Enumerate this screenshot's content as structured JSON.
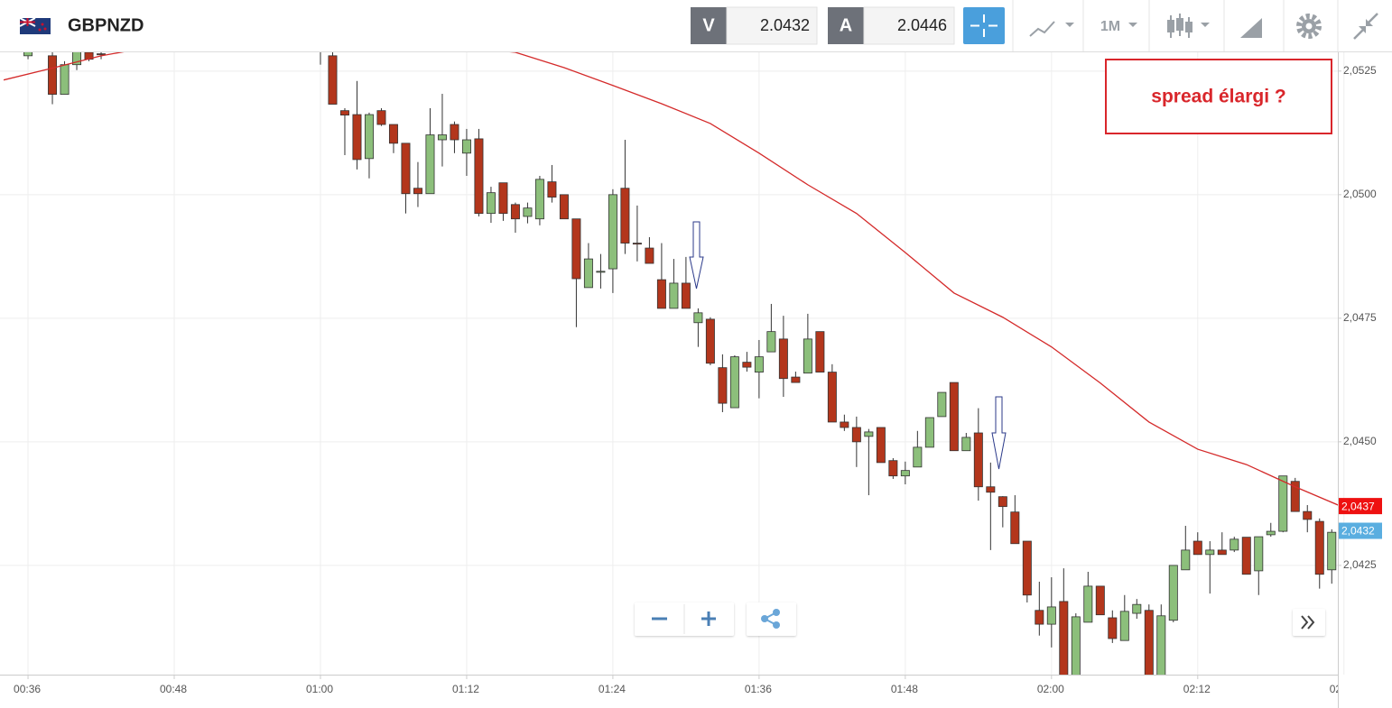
{
  "header": {
    "symbol": "GBPNZD",
    "bid_label": "V",
    "bid": 2.0432,
    "ask_label": "A",
    "ask": 2.0446,
    "timeframe": "1M"
  },
  "chart_data": {
    "type": "candlestick",
    "annotation": "spread élargi ?",
    "up_color": "#8cbf7b",
    "down_color": "#b3361c",
    "wick_color": "#333333",
    "grid": true,
    "xlim": [
      33.7,
      143.5
    ],
    "ylim": [
      2.04029,
      2.05288
    ],
    "xticks": [
      {
        "value": 36,
        "label": "00:36"
      },
      {
        "value": 48,
        "label": "00:48"
      },
      {
        "value": 60,
        "label": "01:00"
      },
      {
        "value": 72,
        "label": "01:12"
      },
      {
        "value": 84,
        "label": "01:24"
      },
      {
        "value": 96,
        "label": "01:36"
      },
      {
        "value": 108,
        "label": "01:48"
      },
      {
        "value": 120,
        "label": "02:00"
      },
      {
        "value": 132,
        "label": "02:12"
      },
      {
        "value": 144,
        "label": "02"
      }
    ],
    "yticks": [
      {
        "value": 2.0425,
        "label": "2,0425"
      },
      {
        "value": 2.045,
        "label": "2,0450"
      },
      {
        "value": 2.0475,
        "label": "2,0475"
      },
      {
        "value": 2.05,
        "label": "2,0500"
      },
      {
        "value": 2.0525,
        "label": "2,0525"
      }
    ],
    "x": [
      36,
      38,
      39,
      40,
      41,
      42,
      60,
      61,
      62,
      63,
      64,
      65,
      66,
      67,
      68,
      69,
      70,
      71,
      72,
      73,
      74,
      75,
      76,
      77,
      78,
      79,
      80,
      81,
      82,
      83,
      84,
      85,
      86,
      87,
      88,
      89,
      90,
      91,
      92,
      93,
      94,
      95,
      96,
      97,
      98,
      99,
      100,
      101,
      102,
      103,
      104,
      105,
      106,
      107,
      108,
      109,
      110,
      111,
      112,
      113,
      114,
      115,
      116,
      117,
      118,
      119,
      120,
      121,
      122,
      123,
      124,
      125,
      126,
      127,
      128,
      129,
      130,
      131,
      132,
      133,
      134,
      135,
      136,
      137,
      138,
      139,
      140,
      141,
      142,
      143
    ],
    "open": [
      2.05281,
      2.05281,
      2.05203,
      2.05263,
      2.05288,
      2.05285,
      2.05303,
      2.05281,
      2.0517,
      2.05162,
      2.05073,
      2.0517,
      2.05142,
      2.05104,
      2.05013,
      2.05002,
      2.05111,
      2.05142,
      2.05084,
      2.05113,
      2.04962,
      2.05024,
      2.0498,
      2.04956,
      2.04951,
      2.05026,
      2.05,
      2.04951,
      2.04812,
      2.04843,
      2.0485,
      2.05013,
      2.04902,
      2.04892,
      2.04828,
      2.0477,
      2.04821,
      2.04741,
      2.04748,
      2.0465,
      2.04569,
      2.04661,
      2.04641,
      2.04682,
      2.04708,
      2.04631,
      2.04639,
      2.04723,
      2.04641,
      2.0454,
      2.04529,
      2.04511,
      2.04529,
      2.04462,
      2.04431,
      2.04449,
      2.04489,
      2.04551,
      2.0462,
      2.04482,
      2.04518,
      2.04409,
      2.04389,
      2.04358,
      2.04299,
      2.04159,
      2.04131,
      2.04177,
      2.0402,
      2.04135,
      2.04208,
      2.04144,
      2.04098,
      2.04153,
      2.04159,
      2.0402,
      2.04139,
      2.04241,
      2.04299,
      2.04272,
      2.04281,
      2.04281,
      2.04307,
      2.04239,
      2.04312,
      2.04319,
      2.0442,
      2.04359,
      2.04339,
      2.04241
    ],
    "high": [
      2.05303,
      2.05294,
      2.0527,
      2.05303,
      2.05299,
      2.05299,
      2.05312,
      2.05292,
      2.05175,
      2.0523,
      2.05166,
      2.05175,
      2.05142,
      2.05104,
      2.05066,
      2.05175,
      2.05204,
      2.05148,
      2.05133,
      2.05133,
      2.05016,
      2.05024,
      2.04984,
      2.04984,
      2.05038,
      2.0506,
      2.05,
      2.04951,
      2.04902,
      2.0488,
      2.05011,
      2.05111,
      2.04978,
      2.04914,
      2.04902,
      2.0487,
      2.04874,
      2.0477,
      2.04752,
      2.04677,
      2.04675,
      2.04682,
      2.04706,
      2.04779,
      2.04755,
      2.04642,
      2.04759,
      2.04723,
      2.04657,
      2.04555,
      2.04551,
      2.04526,
      2.04529,
      2.04467,
      2.0446,
      2.04522,
      2.04549,
      2.046,
      2.0462,
      2.04518,
      2.04568,
      2.04458,
      2.0439,
      2.04392,
      2.04299,
      2.04217,
      2.04226,
      2.04244,
      2.04153,
      2.04237,
      2.04208,
      2.04159,
      2.0419,
      2.04182,
      2.04171,
      2.04171,
      2.0425,
      2.0433,
      2.04317,
      2.04299,
      2.04317,
      2.04308,
      2.04307,
      2.04308,
      2.04336,
      2.04431,
      2.04427,
      2.04372,
      2.04345,
      2.04323
    ],
    "low": [
      2.05274,
      2.05183,
      2.05203,
      2.05252,
      2.0527,
      2.05274,
      2.05263,
      2.05183,
      2.0508,
      2.05051,
      2.05033,
      2.05139,
      2.05084,
      2.04962,
      2.04975,
      2.05002,
      2.05057,
      2.05084,
      2.05038,
      2.04956,
      2.04943,
      2.04947,
      2.04923,
      2.04942,
      2.04938,
      2.04984,
      2.04951,
      2.04732,
      2.04812,
      2.0481,
      2.04801,
      2.0488,
      2.04865,
      2.04861,
      2.0477,
      2.0477,
      2.0477,
      2.04692,
      2.04655,
      2.0456,
      2.04569,
      2.04642,
      2.04588,
      2.04682,
      2.04591,
      2.0462,
      2.04639,
      2.04641,
      2.0454,
      2.04522,
      2.04449,
      2.04392,
      2.04458,
      2.04425,
      2.04414,
      2.04449,
      2.04489,
      2.04551,
      2.04482,
      2.04482,
      2.04381,
      2.04281,
      2.04327,
      2.04294,
      2.04175,
      2.04108,
      2.04084,
      2.0401,
      2.0401,
      2.04135,
      2.0415,
      2.04093,
      2.04098,
      2.04142,
      2.0401,
      2.0401,
      2.04135,
      2.04241,
      2.04272,
      2.04193,
      2.04272,
      2.04277,
      2.04232,
      2.0419,
      2.04308,
      2.04317,
      2.04359,
      2.04317,
      2.04203,
      2.04213
    ],
    "close": [
      2.05292,
      2.05203,
      2.05263,
      2.05292,
      2.05274,
      2.05283,
      2.05292,
      2.05183,
      2.05161,
      2.05071,
      2.05162,
      2.05142,
      2.05104,
      2.05002,
      2.05002,
      2.05121,
      2.05121,
      2.05111,
      2.05111,
      2.04962,
      2.05004,
      2.04962,
      2.04951,
      2.04973,
      2.05031,
      2.04995,
      2.04951,
      2.0483,
      2.0487,
      2.04845,
      2.05,
      2.04902,
      2.049,
      2.04861,
      2.0477,
      2.04821,
      2.0477,
      2.04761,
      2.04659,
      2.04578,
      2.04672,
      2.04651,
      2.04672,
      2.04723,
      2.04628,
      2.0462,
      2.04708,
      2.04641,
      2.0454,
      2.04529,
      2.045,
      2.0452,
      2.04458,
      2.04431,
      2.04442,
      2.04489,
      2.04549,
      2.046,
      2.04482,
      2.04509,
      2.04409,
      2.04398,
      2.04369,
      2.04294,
      2.0419,
      2.04131,
      2.04166,
      2.0402,
      2.04146,
      2.04208,
      2.0415,
      2.04102,
      2.04157,
      2.04171,
      2.0402,
      2.04148,
      2.0425,
      2.04281,
      2.04272,
      2.04281,
      2.04272,
      2.04303,
      2.04232,
      2.04308,
      2.04319,
      2.04431,
      2.04359,
      2.04343,
      2.04232,
      2.04317
    ],
    "moving_average": {
      "color": "#d42a2a",
      "x": [
        34,
        38,
        42,
        48,
        56,
        64,
        70,
        76,
        80,
        84,
        88,
        92,
        96,
        100,
        104,
        108,
        112,
        116,
        120,
        124,
        128,
        132,
        136,
        140,
        144
      ],
      "values": [
        2.05232,
        2.05256,
        2.05281,
        2.05307,
        2.05321,
        2.05318,
        2.05303,
        2.05288,
        2.05257,
        2.05221,
        2.05184,
        2.05144,
        2.05084,
        2.0502,
        2.04962,
        2.04883,
        2.04801,
        2.04752,
        2.04692,
        2.04619,
        2.0454,
        2.04485,
        2.04454,
        2.04409,
        2.04367
      ]
    },
    "price_tags": [
      {
        "value": 2.0437,
        "label": "2,0437",
        "color": "#ee1111"
      },
      {
        "value": 2.0432,
        "label": "2,0432",
        "color": "#5aaee0"
      }
    ]
  }
}
